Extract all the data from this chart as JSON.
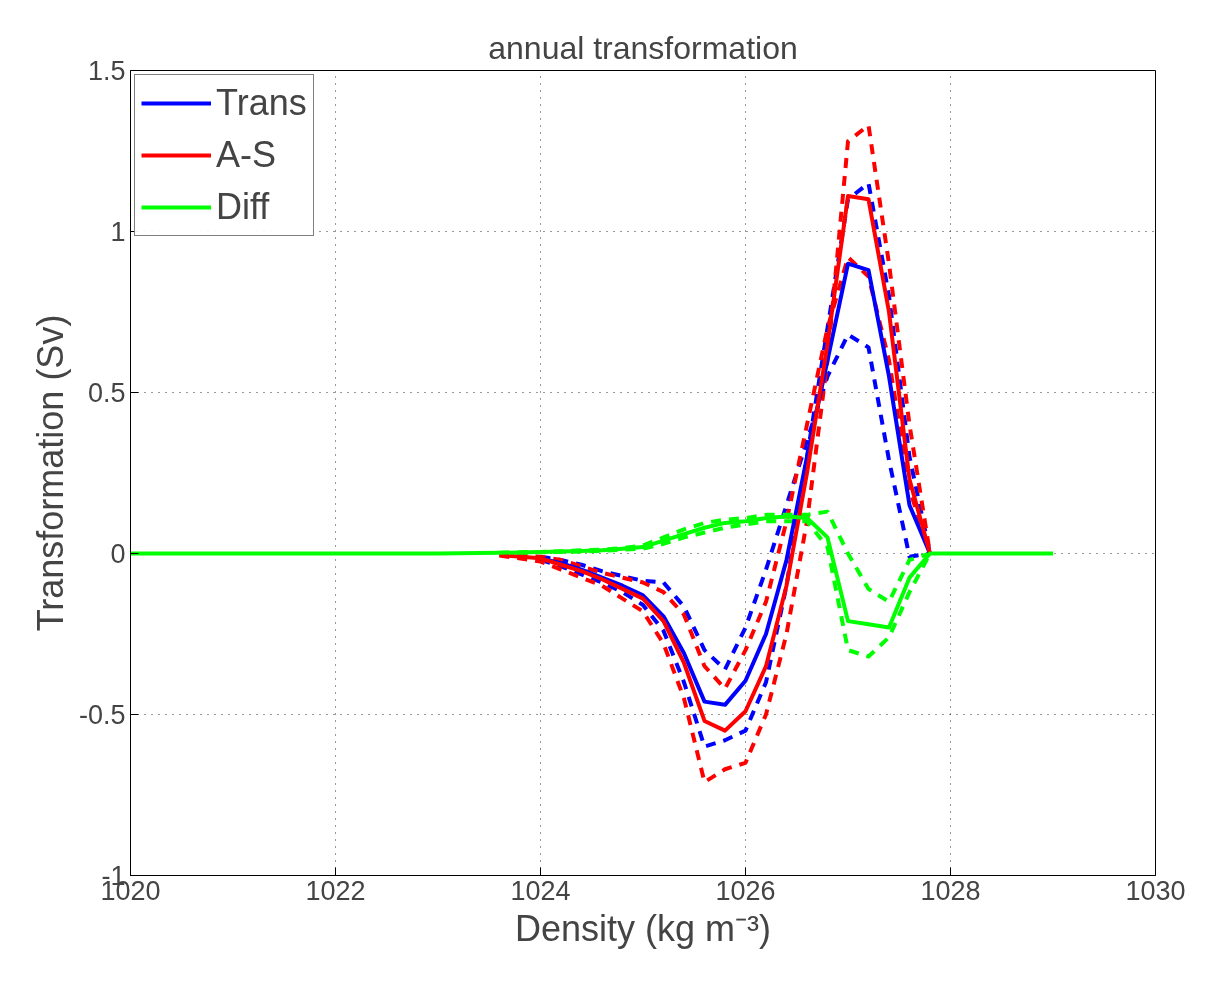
{
  "chart_data": {
    "type": "line",
    "title": "annual transformation",
    "xlabel": "Density (kg m⁻³)",
    "ylabel": "Transformation (Sv)",
    "x": [
      1020,
      1022,
      1023,
      1023.6,
      1024,
      1024.2,
      1024.4,
      1024.6,
      1024.8,
      1025,
      1025.2,
      1025.4,
      1025.6,
      1025.8,
      1026,
      1026.2,
      1026.4,
      1026.6,
      1026.8,
      1027,
      1027.2,
      1027.4,
      1027.6,
      1027.8,
      1028,
      1029
    ],
    "xlim": [
      1020,
      1030
    ],
    "xticks": [
      1020,
      1022,
      1024,
      1026,
      1028,
      1030
    ],
    "ylim": [
      -1,
      1.5
    ],
    "yticks": [
      -1,
      -0.5,
      0,
      0.5,
      1,
      1.5
    ],
    "grid": true,
    "legend": "top left",
    "marker": "none",
    "series": [
      {
        "color": "#0000ff",
        "line_style": "dashed",
        "values": [
          null,
          null,
          null,
          null,
          -0.02,
          -0.04,
          -0.065,
          -0.09,
          -0.12,
          -0.16,
          -0.24,
          -0.4,
          -0.6,
          -0.58,
          -0.55,
          -0.4,
          -0.1,
          0.3,
          0.7,
          1.1,
          1.15,
          0.8,
          0.3,
          0,
          null,
          null
        ]
      },
      {
        "color": "#0000ff",
        "line_style": "dashed",
        "values": [
          null,
          null,
          null,
          null,
          -0.01,
          -0.02,
          -0.035,
          -0.055,
          -0.07,
          -0.085,
          -0.09,
          -0.165,
          -0.3,
          -0.36,
          -0.23,
          -0.05,
          0.15,
          0.35,
          0.55,
          0.68,
          0.64,
          0.29,
          -0.01,
          0,
          null,
          null
        ]
      },
      {
        "color": "#ff0000",
        "line_style": "dashed",
        "values": [
          null,
          null,
          null,
          -0.003,
          -0.01,
          -0.02,
          -0.04,
          -0.06,
          -0.075,
          -0.09,
          -0.12,
          -0.19,
          -0.35,
          -0.42,
          -0.3,
          -0.15,
          0.1,
          0.4,
          0.7,
          0.92,
          0.86,
          0.6,
          0.2,
          0,
          null,
          null
        ]
      },
      {
        "color": "#ff0000",
        "line_style": "dashed",
        "values": [
          null,
          null,
          null,
          -0.006,
          -0.025,
          -0.05,
          -0.075,
          -0.1,
          -0.14,
          -0.18,
          -0.28,
          -0.45,
          -0.71,
          -0.67,
          -0.65,
          -0.5,
          -0.25,
          0.1,
          0.6,
          1.28,
          1.33,
          0.9,
          0.4,
          0,
          null,
          null
        ]
      },
      {
        "color": "#00ff00",
        "line_style": "dashed",
        "values": [
          null,
          null,
          null,
          0.002,
          0.005,
          0.007,
          0.01,
          0.012,
          0.017,
          0.025,
          0.05,
          0.075,
          0.095,
          0.105,
          0.11,
          0.12,
          0.12,
          0.12,
          0.13,
          0,
          -0.11,
          -0.15,
          -0.02,
          0,
          null,
          null
        ]
      },
      {
        "color": "#00ff00",
        "line_style": "dashed",
        "values": [
          null,
          null,
          null,
          0.001,
          0.004,
          0.005,
          0.006,
          0.008,
          0.012,
          0.015,
          0.03,
          0.05,
          0.065,
          0.08,
          0.09,
          0.1,
          0.1,
          0.1,
          0.02,
          -0.3,
          -0.32,
          -0.26,
          -0.12,
          0,
          null,
          null
        ]
      },
      {
        "name": "Trans",
        "color": "#0000ff",
        "line_style": "solid",
        "values": [
          null,
          null,
          null,
          null,
          -0.015,
          -0.03,
          -0.05,
          -0.075,
          -0.1,
          -0.13,
          -0.195,
          -0.31,
          -0.46,
          -0.47,
          -0.395,
          -0.25,
          -0.02,
          0.3,
          0.6,
          0.9,
          0.88,
          0.55,
          0.15,
          0,
          null,
          null
        ]
      },
      {
        "name": "A-S",
        "color": "#ff0000",
        "line_style": "solid",
        "values": [
          null,
          null,
          null,
          -0.005,
          -0.015,
          -0.035,
          -0.055,
          -0.08,
          -0.11,
          -0.14,
          -0.21,
          -0.34,
          -0.52,
          -0.55,
          -0.49,
          -0.35,
          -0.1,
          0.25,
          0.65,
          1.11,
          1.1,
          0.75,
          0.23,
          0,
          null,
          null
        ]
      },
      {
        "name": "Diff",
        "color": "#00ff00",
        "line_style": "solid",
        "values": [
          0,
          0,
          0,
          0.002,
          0.005,
          0.006,
          0.008,
          0.01,
          0.015,
          0.02,
          0.04,
          0.06,
          0.08,
          0.095,
          0.1,
          0.11,
          0.115,
          0.11,
          0.05,
          -0.21,
          -0.22,
          -0.23,
          -0.075,
          0,
          0,
          0
        ]
      }
    ]
  }
}
